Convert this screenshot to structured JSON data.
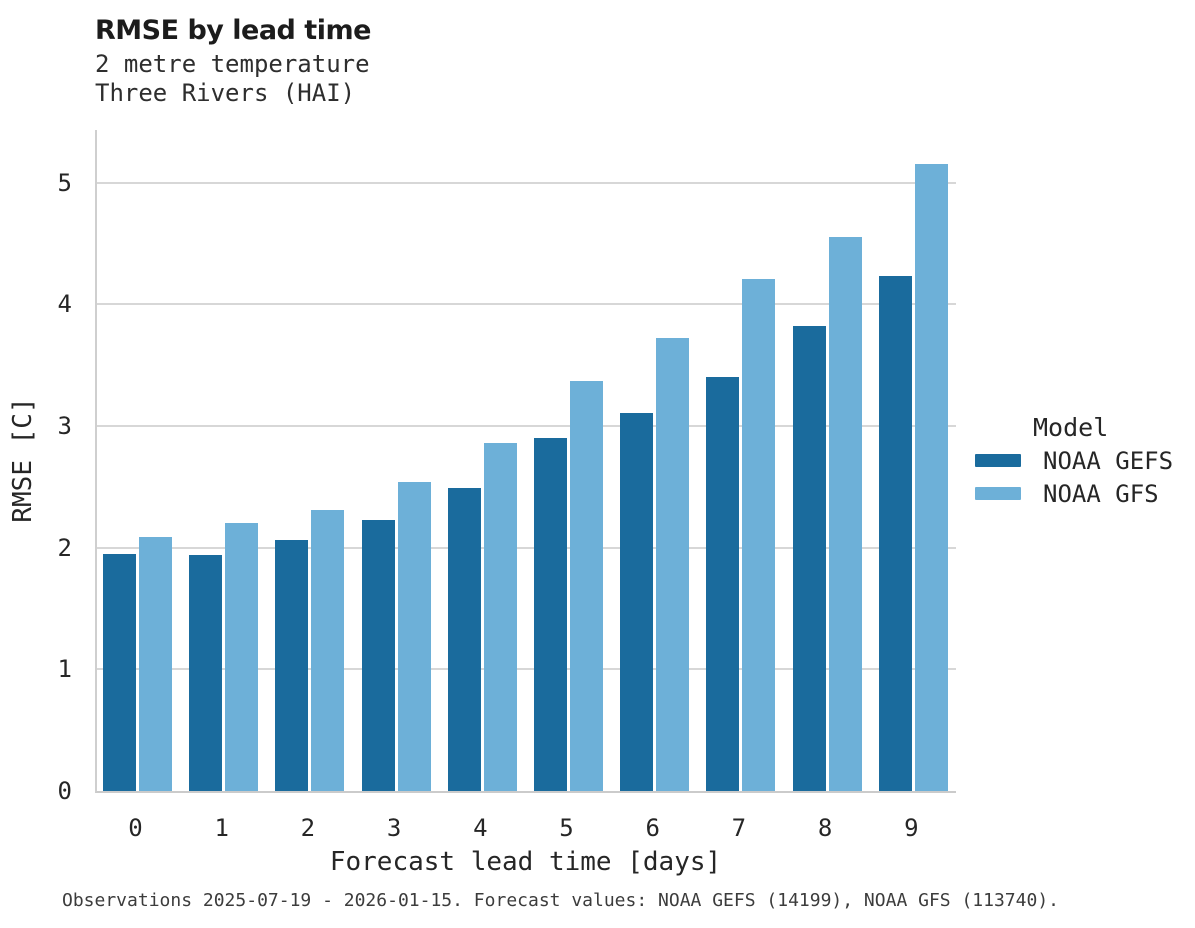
{
  "chart_data": {
    "type": "bar",
    "title": "RMSE by lead time",
    "subtitle_line1": "2 metre temperature",
    "subtitle_line2": "Three Rivers (HAI)",
    "xlabel": "Forecast lead time [days]",
    "ylabel": "RMSE [C]",
    "categories": [
      "0",
      "1",
      "2",
      "3",
      "4",
      "5",
      "6",
      "7",
      "8",
      "9"
    ],
    "series": [
      {
        "name": "NOAA GEFS",
        "color": "#1a6b9d",
        "values": [
          1.95,
          1.94,
          2.06,
          2.23,
          2.49,
          2.9,
          3.11,
          3.4,
          3.82,
          4.23
        ]
      },
      {
        "name": "NOAA GFS",
        "color": "#6db0d8",
        "values": [
          2.09,
          2.2,
          2.31,
          2.54,
          2.86,
          3.37,
          3.72,
          4.21,
          4.55,
          5.15
        ]
      }
    ],
    "yticks": [
      "0",
      "1",
      "2",
      "3",
      "4",
      "5"
    ],
    "ylim": [
      0,
      5.45
    ],
    "grid": "horizontal",
    "legend_title": "Model",
    "legend_position": "right-center",
    "caption": "Observations 2025-07-19 - 2026-01-15. Forecast values: NOAA GEFS (14199), NOAA GFS (113740)."
  },
  "colors": {
    "gridline": "#d7d7d7",
    "axis_spine": "#cfcfcf",
    "title_text": "#1c1c1c",
    "tick_text": "#262626",
    "caption_text": "#3c3c3c",
    "background": "#ffffff"
  }
}
